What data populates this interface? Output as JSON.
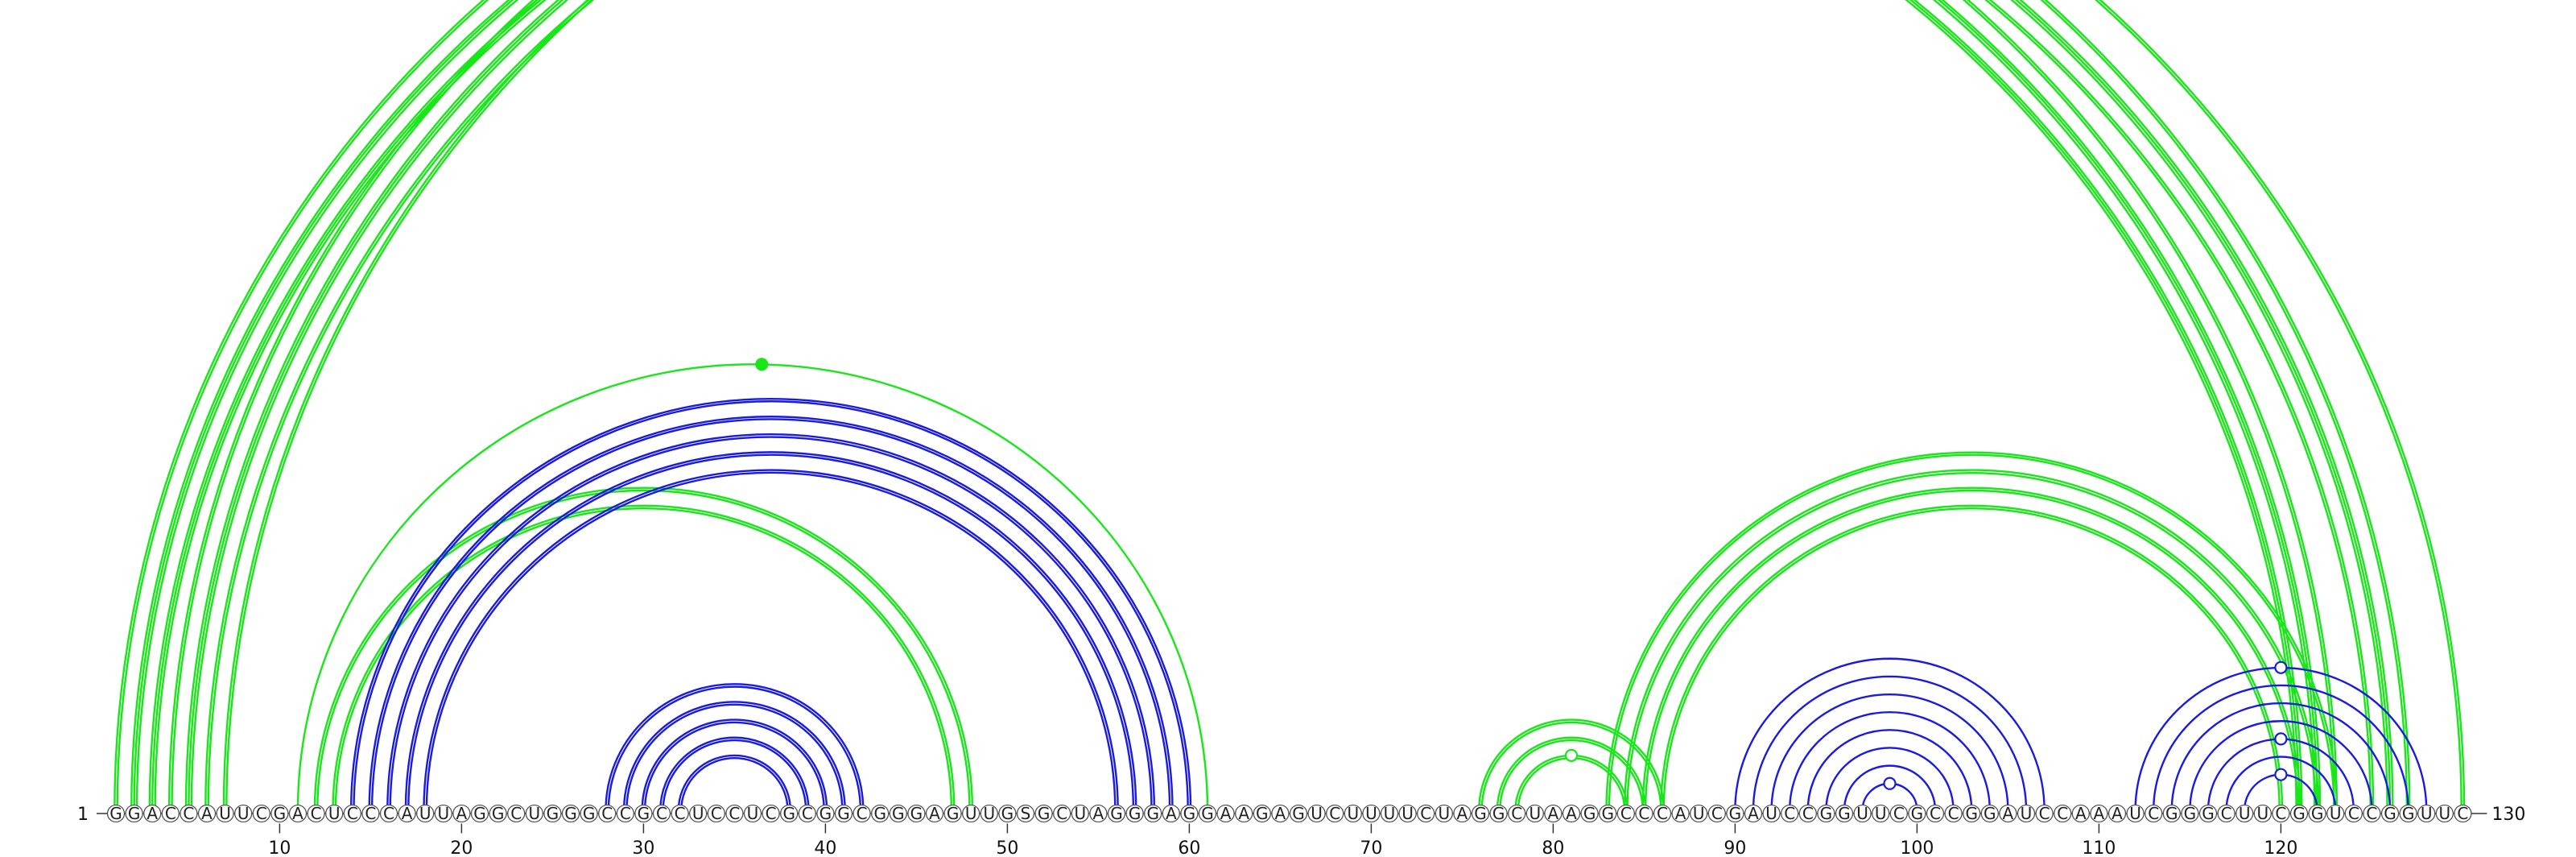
{
  "sequence": "GGACCAUUCGACUCCCAUUAGGCUGGGCCGCCUCCUCGCGGCGGGAGUUGSGCUAGGGAGGAAGAGUCUUUUCUAGGCUAAGGCCCAUCGAUCCGGUUCGCCGGAUCCAAAUCGGGCUUCGGUCCGGUUC",
  "start_label": "1",
  "end_label": "130",
  "ticks": [
    10,
    20,
    30,
    40,
    50,
    60,
    70,
    80,
    90,
    100,
    110,
    120
  ],
  "colors": {
    "green": "#19e619",
    "blue": "#1a1ae0",
    "line": "#333333"
  },
  "arcs": [
    {
      "i": 1,
      "j": 123,
      "c": "green",
      "n": 2
    },
    {
      "i": 2,
      "j": 122,
      "c": "green",
      "n": 3
    },
    {
      "i": 3,
      "j": 121,
      "c": "green",
      "n": 3
    },
    {
      "i": 4,
      "j": 127,
      "c": "green",
      "n": 2
    },
    {
      "i": 5,
      "j": 126,
      "c": "green",
      "n": 3
    },
    {
      "i": 6,
      "j": 125,
      "c": "green",
      "n": 2
    },
    {
      "i": 7,
      "j": 130,
      "c": "green",
      "n": 2
    },
    {
      "i": 11,
      "j": 61,
      "c": "green",
      "n": 1
    },
    {
      "i": 12,
      "j": 48,
      "c": "green",
      "n": 2
    },
    {
      "i": 13,
      "j": 47,
      "c": "green",
      "n": 2
    },
    {
      "i": 14,
      "j": 60,
      "c": "blue",
      "n": 2
    },
    {
      "i": 15,
      "j": 59,
      "c": "blue",
      "n": 2
    },
    {
      "i": 16,
      "j": 58,
      "c": "blue",
      "n": 2
    },
    {
      "i": 17,
      "j": 57,
      "c": "blue",
      "n": 2
    },
    {
      "i": 18,
      "j": 56,
      "c": "blue",
      "n": 2
    },
    {
      "i": 28,
      "j": 42,
      "c": "blue",
      "n": 2
    },
    {
      "i": 29,
      "j": 41,
      "c": "blue",
      "n": 2
    },
    {
      "i": 30,
      "j": 40,
      "c": "blue",
      "n": 2
    },
    {
      "i": 31,
      "j": 39,
      "c": "blue",
      "n": 2
    },
    {
      "i": 32,
      "j": 38,
      "c": "blue",
      "n": 2
    },
    {
      "i": 76,
      "j": 86,
      "c": "green",
      "n": 2
    },
    {
      "i": 77,
      "j": 85,
      "c": "green",
      "n": 2
    },
    {
      "i": 78,
      "j": 84,
      "c": "green",
      "n": 2
    },
    {
      "i": 83,
      "j": 123,
      "c": "green",
      "n": 2
    },
    {
      "i": 84,
      "j": 122,
      "c": "green",
      "n": 2
    },
    {
      "i": 85,
      "j": 121,
      "c": "green",
      "n": 2
    },
    {
      "i": 86,
      "j": 120,
      "c": "green",
      "n": 2
    },
    {
      "i": 90,
      "j": 107,
      "c": "blue",
      "n": 1
    },
    {
      "i": 91,
      "j": 106,
      "c": "blue",
      "n": 1
    },
    {
      "i": 92,
      "j": 105,
      "c": "blue",
      "n": 1
    },
    {
      "i": 93,
      "j": 104,
      "c": "blue",
      "n": 1
    },
    {
      "i": 94,
      "j": 103,
      "c": "blue",
      "n": 1
    },
    {
      "i": 95,
      "j": 102,
      "c": "blue",
      "n": 1
    },
    {
      "i": 96,
      "j": 101,
      "c": "blue",
      "n": 1
    },
    {
      "i": 97,
      "j": 100,
      "c": "blue",
      "n": 1
    },
    {
      "i": 112,
      "j": 128,
      "c": "blue",
      "n": 1
    },
    {
      "i": 113,
      "j": 127,
      "c": "blue",
      "n": 1
    },
    {
      "i": 114,
      "j": 126,
      "c": "blue",
      "n": 1
    },
    {
      "i": 115,
      "j": 125,
      "c": "blue",
      "n": 1
    },
    {
      "i": 116,
      "j": 124,
      "c": "blue",
      "n": 1
    },
    {
      "i": 117,
      "j": 123,
      "c": "blue",
      "n": 1
    },
    {
      "i": 118,
      "j": 122,
      "c": "blue",
      "n": 1
    }
  ],
  "markers": [
    {
      "pos": 66,
      "c": "green",
      "filled": false,
      "arc": 0
    },
    {
      "pos": 36.5,
      "c": "green",
      "filled": true,
      "arc": 7
    },
    {
      "pos": 81,
      "c": "green",
      "filled": false,
      "arc": 22
    },
    {
      "pos": 98.5,
      "c": "blue",
      "filled": false,
      "arc": 34
    },
    {
      "pos": 120,
      "c": "blue",
      "filled": false,
      "arc": 35
    },
    {
      "pos": 120,
      "c": "blue",
      "filled": false,
      "arc": 39
    },
    {
      "pos": 120,
      "c": "blue",
      "filled": false,
      "arc": 41
    }
  ]
}
